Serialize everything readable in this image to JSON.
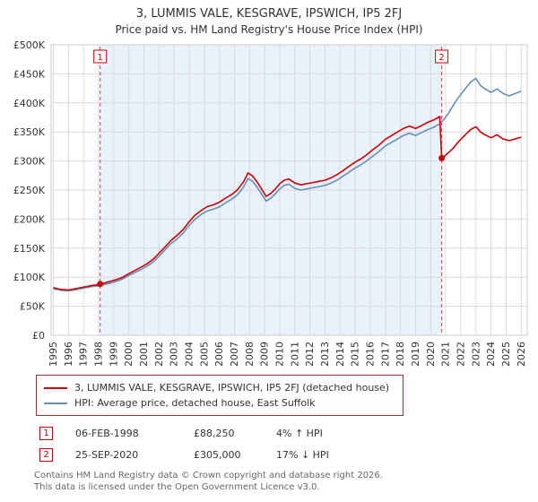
{
  "page": {
    "title": "3, LUMMIS VALE, KESGRAVE, IPSWICH, IP5 2FJ",
    "subtitle": "Price paid vs. HM Land Registry's House Price Index (HPI)"
  },
  "colors": {
    "accent_red": "#cc0000",
    "legend_border": "#993333",
    "hpi_blue": "#6590bb"
  },
  "chart_data": {
    "type": "line",
    "title": "3, LUMMIS VALE, KESGRAVE, IPSWICH, IP5 2FJ — Price paid vs. HPI",
    "x_range": [
      1994.85,
      2026.4
    ],
    "ylim": [
      0,
      500000
    ],
    "grid": true,
    "band_color": "#e9f1fa",
    "grid_color": "#d9d9d9",
    "dash_color": "#cc0000",
    "x_years": [
      1995,
      1996,
      1997,
      1998,
      1999,
      2000,
      2001,
      2002,
      2003,
      2004,
      2005,
      2006,
      2007,
      2008,
      2009,
      2010,
      2011,
      2012,
      2013,
      2014,
      2015,
      2016,
      2017,
      2018,
      2019,
      2020,
      2021,
      2022,
      2023,
      2024,
      2025,
      2026
    ],
    "y_ticks": [
      {
        "value": 0,
        "label": "£0"
      },
      {
        "value": 50000,
        "label": "£50K"
      },
      {
        "value": 100000,
        "label": "£100K"
      },
      {
        "value": 150000,
        "label": "£150K"
      },
      {
        "value": 200000,
        "label": "£200K"
      },
      {
        "value": 250000,
        "label": "£250K"
      },
      {
        "value": 300000,
        "label": "£300K"
      },
      {
        "value": 350000,
        "label": "£350K"
      },
      {
        "value": 400000,
        "label": "£400K"
      },
      {
        "value": 450000,
        "label": "£450K"
      },
      {
        "value": 500000,
        "label": "£500K"
      }
    ],
    "sales": [
      {
        "marker": "1",
        "x": 1998.1,
        "y": 88250,
        "date": "06-FEB-1998",
        "price": 88250,
        "hpi_relation": "4% above HPI"
      },
      {
        "marker": "2",
        "x": 2020.73,
        "y": 305000,
        "date": "25-SEP-2020",
        "price": 305000,
        "hpi_relation": "17% below HPI"
      }
    ],
    "series": [
      {
        "id": "property",
        "name": "3, LUMMIS VALE, KESGRAVE, IPSWICH, IP5 2FJ (detached house)",
        "color": "#cc0000",
        "points": [
          [
            1995.0,
            82000
          ],
          [
            1995.3,
            80000
          ],
          [
            1995.6,
            78500
          ],
          [
            1996.0,
            78000
          ],
          [
            1996.4,
            80000
          ],
          [
            1996.8,
            82000
          ],
          [
            1997.2,
            84000
          ],
          [
            1997.6,
            86000
          ],
          [
            1998.0,
            87000
          ],
          [
            1998.1,
            88250
          ],
          [
            1998.4,
            90000
          ],
          [
            1998.8,
            93000
          ],
          [
            1999.2,
            96000
          ],
          [
            1999.6,
            100000
          ],
          [
            2000.0,
            106000
          ],
          [
            2000.4,
            111500
          ],
          [
            2000.8,
            117000
          ],
          [
            2001.2,
            123000
          ],
          [
            2001.6,
            130500
          ],
          [
            2002.0,
            141000
          ],
          [
            2002.4,
            152000
          ],
          [
            2002.8,
            163500
          ],
          [
            2003.2,
            172000
          ],
          [
            2003.6,
            182000
          ],
          [
            2004.0,
            195500
          ],
          [
            2004.4,
            207000
          ],
          [
            2004.8,
            215000
          ],
          [
            2005.2,
            221500
          ],
          [
            2005.6,
            224500
          ],
          [
            2006.0,
            229000
          ],
          [
            2006.4,
            236000
          ],
          [
            2006.8,
            242000
          ],
          [
            2007.2,
            250500
          ],
          [
            2007.6,
            264000
          ],
          [
            2007.9,
            279500
          ],
          [
            2008.2,
            274000
          ],
          [
            2008.5,
            264000
          ],
          [
            2008.8,
            251500
          ],
          [
            2009.1,
            239000
          ],
          [
            2009.4,
            244000
          ],
          [
            2009.7,
            251500
          ],
          [
            2010.0,
            261000
          ],
          [
            2010.3,
            267000
          ],
          [
            2010.6,
            269000
          ],
          [
            2011.0,
            262000
          ],
          [
            2011.4,
            259000
          ],
          [
            2011.8,
            261000
          ],
          [
            2012.2,
            263000
          ],
          [
            2012.6,
            265000
          ],
          [
            2013.0,
            267000
          ],
          [
            2013.4,
            271000
          ],
          [
            2013.8,
            276500
          ],
          [
            2014.2,
            283500
          ],
          [
            2014.6,
            291000
          ],
          [
            2015.0,
            298000
          ],
          [
            2015.4,
            304000
          ],
          [
            2015.8,
            311500
          ],
          [
            2016.2,
            320000
          ],
          [
            2016.6,
            328000
          ],
          [
            2017.0,
            337500
          ],
          [
            2017.4,
            343500
          ],
          [
            2017.8,
            350000
          ],
          [
            2018.2,
            356000
          ],
          [
            2018.6,
            360000
          ],
          [
            2019.0,
            356000
          ],
          [
            2019.4,
            361000
          ],
          [
            2019.8,
            366500
          ],
          [
            2020.2,
            370500
          ],
          [
            2020.6,
            376500
          ],
          [
            2020.73,
            305000
          ],
          [
            2021.0,
            310000
          ],
          [
            2021.5,
            322000
          ],
          [
            2021.8,
            332000
          ],
          [
            2022.1,
            340000
          ],
          [
            2022.4,
            348000
          ],
          [
            2022.7,
            355000
          ],
          [
            2023.0,
            359000
          ],
          [
            2023.3,
            350000
          ],
          [
            2023.6,
            345000
          ],
          [
            2024.0,
            340000
          ],
          [
            2024.4,
            345000
          ],
          [
            2024.8,
            338000
          ],
          [
            2025.2,
            335000
          ],
          [
            2025.6,
            338000
          ],
          [
            2026.0,
            341000
          ]
        ]
      },
      {
        "id": "hpi",
        "name": "HPI: Average price, detached house, East Suffolk",
        "color": "#6590bb",
        "points": [
          [
            1995.0,
            80000
          ],
          [
            1995.3,
            78500
          ],
          [
            1995.6,
            77000
          ],
          [
            1996.0,
            76500
          ],
          [
            1996.4,
            78000
          ],
          [
            1996.8,
            80000
          ],
          [
            1997.2,
            82000
          ],
          [
            1997.6,
            84000
          ],
          [
            1998.0,
            85000
          ],
          [
            1998.4,
            87500
          ],
          [
            1998.8,
            90000
          ],
          [
            1999.2,
            93000
          ],
          [
            1999.6,
            97000
          ],
          [
            2000.0,
            103000
          ],
          [
            2000.4,
            108000
          ],
          [
            2000.8,
            113000
          ],
          [
            2001.2,
            119000
          ],
          [
            2001.6,
            126000
          ],
          [
            2002.0,
            136000
          ],
          [
            2002.4,
            147000
          ],
          [
            2002.8,
            158000
          ],
          [
            2003.2,
            166000
          ],
          [
            2003.6,
            176000
          ],
          [
            2004.0,
            189000
          ],
          [
            2004.4,
            200000
          ],
          [
            2004.8,
            208000
          ],
          [
            2005.2,
            214000
          ],
          [
            2005.6,
            217000
          ],
          [
            2006.0,
            221000
          ],
          [
            2006.4,
            228000
          ],
          [
            2006.8,
            234000
          ],
          [
            2007.2,
            242000
          ],
          [
            2007.6,
            255000
          ],
          [
            2007.9,
            270000
          ],
          [
            2008.2,
            265000
          ],
          [
            2008.5,
            255000
          ],
          [
            2008.8,
            243000
          ],
          [
            2009.1,
            231000
          ],
          [
            2009.4,
            236000
          ],
          [
            2009.7,
            243000
          ],
          [
            2010.0,
            252000
          ],
          [
            2010.3,
            258000
          ],
          [
            2010.6,
            260000
          ],
          [
            2011.0,
            253000
          ],
          [
            2011.4,
            250000
          ],
          [
            2011.8,
            252000
          ],
          [
            2012.2,
            254000
          ],
          [
            2012.6,
            256000
          ],
          [
            2013.0,
            258000
          ],
          [
            2013.4,
            262000
          ],
          [
            2013.8,
            267000
          ],
          [
            2014.2,
            274000
          ],
          [
            2014.6,
            281000
          ],
          [
            2015.0,
            288000
          ],
          [
            2015.4,
            294000
          ],
          [
            2015.8,
            301000
          ],
          [
            2016.2,
            309000
          ],
          [
            2016.6,
            317000
          ],
          [
            2017.0,
            326000
          ],
          [
            2017.4,
            332000
          ],
          [
            2017.8,
            338000
          ],
          [
            2018.2,
            344000
          ],
          [
            2018.6,
            348000
          ],
          [
            2019.0,
            344000
          ],
          [
            2019.4,
            349000
          ],
          [
            2019.8,
            354000
          ],
          [
            2020.2,
            358000
          ],
          [
            2020.6,
            364000
          ],
          [
            2020.9,
            372000
          ],
          [
            2021.2,
            383000
          ],
          [
            2021.5,
            396000
          ],
          [
            2021.8,
            408000
          ],
          [
            2022.1,
            418000
          ],
          [
            2022.4,
            428000
          ],
          [
            2022.7,
            437000
          ],
          [
            2023.0,
            442000
          ],
          [
            2023.3,
            430000
          ],
          [
            2023.6,
            424000
          ],
          [
            2024.0,
            418000
          ],
          [
            2024.4,
            424000
          ],
          [
            2024.8,
            416000
          ],
          [
            2025.2,
            412000
          ],
          [
            2025.6,
            416000
          ],
          [
            2026.0,
            420000
          ]
        ]
      }
    ]
  },
  "legend": {
    "items": [
      {
        "label": "3, LUMMIS VALE, KESGRAVE, IPSWICH, IP5 2FJ (detached house)",
        "color": "#cc0000"
      },
      {
        "label": "HPI: Average price, detached house, East Suffolk",
        "color": "#6590bb"
      }
    ]
  },
  "transactions": [
    {
      "marker": "1",
      "date": "06-FEB-1998",
      "price": "£88,250",
      "hpi_change": "4% ↑ HPI"
    },
    {
      "marker": "2",
      "date": "25-SEP-2020",
      "price": "£305,000",
      "hpi_change": "17% ↓ HPI"
    }
  ],
  "footer": {
    "line1": "Contains HM Land Registry data © Crown copyright and database right 2026.",
    "line2": "This data is licensed under the Open Government Licence v3.0."
  }
}
